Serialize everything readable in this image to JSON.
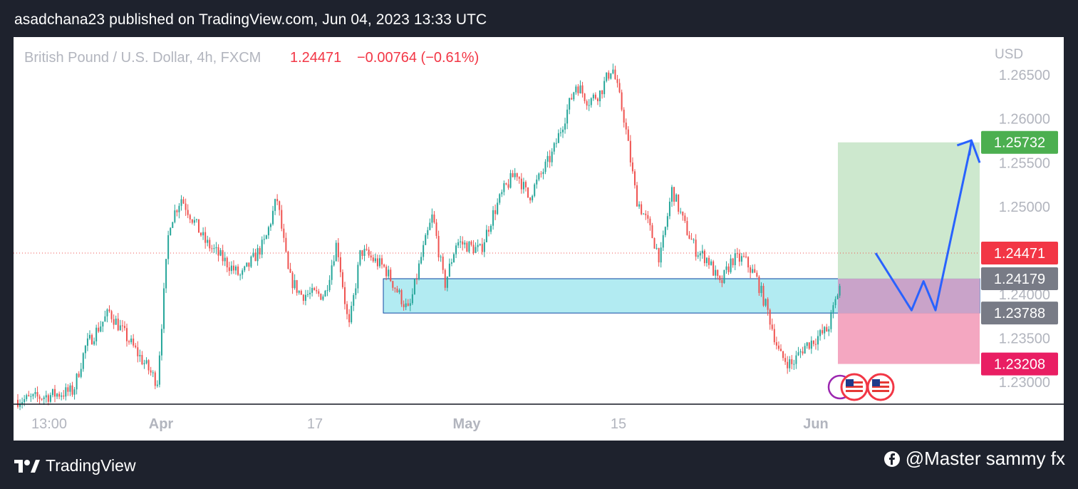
{
  "header": {
    "publish_text": "asadchana23 published on TradingView.com, Jun 04, 2023 13:33 UTC"
  },
  "chart_data": {
    "type": "candlestick",
    "symbol_text": "British Pound / U.S. Dollar, 4h, FXCM",
    "last_price": "1.24471",
    "change": "−0.00764 (−0.61%)",
    "currency": "USD",
    "y_ticks": [
      "1.26500",
      "1.26000",
      "1.25500",
      "1.25000",
      "1.24000",
      "1.23500",
      "1.23000"
    ],
    "x_ticks": [
      "13:00",
      "Apr",
      "17",
      "May",
      "15",
      "Jun"
    ],
    "ylim": [
      1.2275,
      1.2685
    ],
    "grid": false,
    "price_path": [
      [
        "2023-03-23",
        1.228
      ],
      [
        "2023-03-27",
        1.229
      ],
      [
        "2023-03-28",
        1.234
      ],
      [
        "2023-03-30",
        1.238
      ],
      [
        "2023-03-31",
        1.236
      ],
      [
        "2023-04-03",
        1.23
      ],
      [
        "2023-04-04",
        1.248
      ],
      [
        "2023-04-05",
        1.251
      ],
      [
        "2023-04-07",
        1.246
      ],
      [
        "2023-04-10",
        1.242
      ],
      [
        "2023-04-12",
        1.246
      ],
      [
        "2023-04-13",
        1.251
      ],
      [
        "2023-04-14",
        1.242
      ],
      [
        "2023-04-15",
        1.24
      ],
      [
        "2023-04-17",
        1.24
      ],
      [
        "2023-04-18",
        1.246
      ],
      [
        "2023-04-19",
        1.236
      ],
      [
        "2023-04-20",
        1.245
      ],
      [
        "2023-04-21",
        1.244
      ],
      [
        "2023-04-22",
        1.243
      ],
      [
        "2023-04-24",
        1.238
      ],
      [
        "2023-04-25",
        1.244
      ],
      [
        "2023-04-26",
        1.249
      ],
      [
        "2023-04-27",
        1.241
      ],
      [
        "2023-04-28",
        1.246
      ],
      [
        "2023-04-30",
        1.245
      ],
      [
        "2023-05-01",
        1.249
      ],
      [
        "2023-05-02",
        1.252
      ],
      [
        "2023-05-03",
        1.254
      ],
      [
        "2023-05-04",
        1.251
      ],
      [
        "2023-05-06",
        1.256
      ],
      [
        "2023-05-07",
        1.26
      ],
      [
        "2023-05-08",
        1.264
      ],
      [
        "2023-05-09",
        1.262
      ],
      [
        "2023-05-10",
        1.263
      ],
      [
        "2023-05-11",
        1.266
      ],
      [
        "2023-05-12",
        1.26
      ],
      [
        "2023-05-13",
        1.251
      ],
      [
        "2023-05-14",
        1.248
      ],
      [
        "2023-05-15",
        1.244
      ],
      [
        "2023-05-16",
        1.252
      ],
      [
        "2023-05-17",
        1.248
      ],
      [
        "2023-05-18",
        1.245
      ],
      [
        "2023-05-19",
        1.244
      ],
      [
        "2023-05-20",
        1.241
      ],
      [
        "2023-05-21",
        1.244
      ],
      [
        "2023-05-22",
        1.244
      ],
      [
        "2023-05-23",
        1.242
      ],
      [
        "2023-05-24",
        1.238
      ],
      [
        "2023-05-25",
        1.233
      ],
      [
        "2023-05-26",
        1.232
      ],
      [
        "2023-05-27",
        1.234
      ],
      [
        "2023-05-28",
        1.235
      ],
      [
        "2023-05-29",
        1.236
      ],
      [
        "2023-05-30",
        1.241
      ],
      [
        "2023-05-31",
        1.236
      ],
      [
        "2023-06-01",
        1.251
      ],
      [
        "2023-06-02",
        1.2447
      ]
    ],
    "annotations": {
      "demand_zone": [
        1.23788,
        1.24179
      ],
      "take_profit": "1.25732",
      "entry_top": "1.24179",
      "entry_bottom": "1.23788",
      "stop_loss": "1.23208",
      "projection": [
        [
          "2023-06-02",
          1.2447
        ],
        [
          "2023-06-05",
          1.2382
        ],
        [
          "2023-06-06",
          1.2415
        ],
        [
          "2023-06-07",
          1.2382
        ],
        [
          "2023-06-10",
          1.2573
        ]
      ]
    }
  },
  "colors": {
    "up": "#26a69a",
    "down": "#ef5350",
    "zone_fill": "#b2ebf2",
    "zone_border": "#0d47a1",
    "profit_fill": "#c8e6c9",
    "loss_fill": "#f4a7c1",
    "take_profit_label": "#4caf50",
    "last_price_label": "#f23645",
    "entry_label": "#787b86",
    "stop_label": "#e91e63",
    "projection_line": "#2962ff"
  },
  "footer": {
    "brand": "TradingView",
    "credit": "@Master sammy fx"
  }
}
